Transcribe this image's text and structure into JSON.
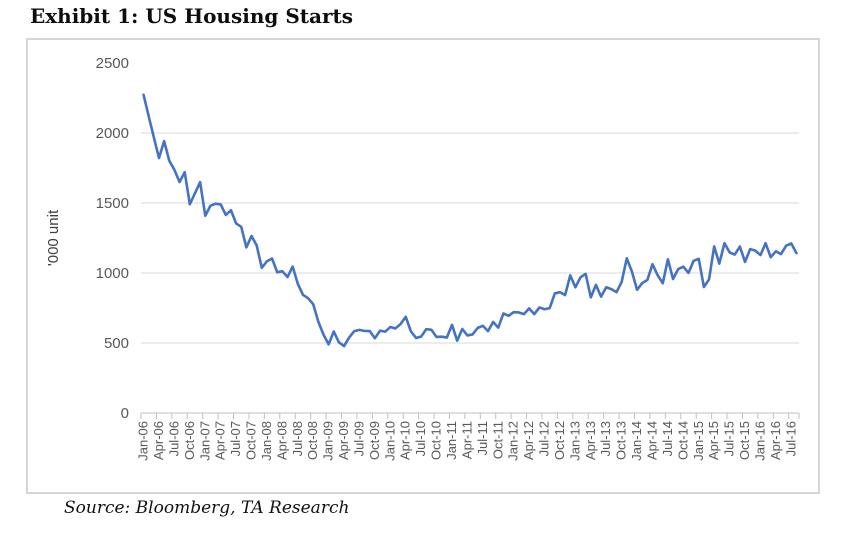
{
  "title": "Exhibit 1: US Housing Starts",
  "source": "Source: Bloomberg, TA Research",
  "chart_data": {
    "type": "line",
    "title": "Exhibit 1: US Housing Starts",
    "xlabel": "",
    "ylabel": "'000 unit",
    "ylim": [
      0,
      2500
    ],
    "yticks": [
      0,
      500,
      1000,
      1500,
      2000,
      2500
    ],
    "grid": "horizontal-only, no gridline at top value",
    "legend": "none",
    "line_color": "#4472C4",
    "gridline_color": "#d9d9d9",
    "axis_line_color": "#bfbfbf",
    "tick_label_color": "#595959",
    "x_label_every": 3,
    "x_tick_labels": [
      "Jan-06",
      "Apr-06",
      "Jul-06",
      "Oct-06",
      "Jan-07",
      "Apr-07",
      "Jul-07",
      "Oct-07",
      "Jan-08",
      "Apr-08",
      "Jul-08",
      "Oct-08",
      "Jan-09",
      "Apr-09",
      "Jul-09",
      "Oct-09",
      "Jan-10",
      "Apr-10",
      "Jul-10",
      "Oct-10",
      "Jan-11",
      "Apr-11",
      "Jul-11",
      "Oct-11",
      "Jan-12",
      "Apr-12",
      "Jul-12",
      "Oct-12",
      "Jan-13",
      "Apr-13",
      "Jul-13",
      "Oct-13",
      "Jan-14",
      "Apr-14",
      "Jul-14",
      "Oct-14",
      "Jan-15",
      "Apr-15",
      "Jul-15",
      "Oct-15",
      "Jan-16",
      "Apr-16",
      "Jul-16"
    ],
    "series": [
      {
        "name": "US Housing Starts ('000 unit, monthly, Jan-06 to Aug-16)",
        "start_month": "Jan-06",
        "frequency": "monthly",
        "values": [
          2273,
          2119,
          1969,
          1821,
          1942,
          1802,
          1737,
          1650,
          1720,
          1491,
          1570,
          1649,
          1409,
          1480,
          1495,
          1490,
          1415,
          1448,
          1354,
          1330,
          1183,
          1264,
          1197,
          1037,
          1084,
          1103,
          1005,
          1013,
          971,
          1046,
          923,
          844,
          820,
          777,
          652,
          560,
          490,
          582,
          505,
          478,
          540,
          585,
          594,
          586,
          585,
          534,
          588,
          581,
          614,
          604,
          636,
          687,
          583,
          536,
          546,
          599,
          594,
          543,
          545,
          539,
          630,
          517,
          600,
          554,
          561,
          608,
          623,
          585,
          650,
          610,
          711,
          694,
          720,
          718,
          706,
          747,
          706,
          754,
          741,
          749,
          854,
          863,
          842,
          983,
          898,
          969,
          994,
          826,
          915,
          831,
          898,
          885,
          863,
          936,
          1105,
          1010,
          880,
          928,
          950,
          1063,
          984,
          927,
          1098,
          957,
          1028,
          1045,
          1001,
          1087,
          1101,
          900,
          954,
          1190,
          1067,
          1213,
          1147,
          1132,
          1189,
          1079,
          1171,
          1160,
          1128,
          1213,
          1113,
          1155,
          1135,
          1195,
          1211,
          1142
        ]
      }
    ]
  }
}
